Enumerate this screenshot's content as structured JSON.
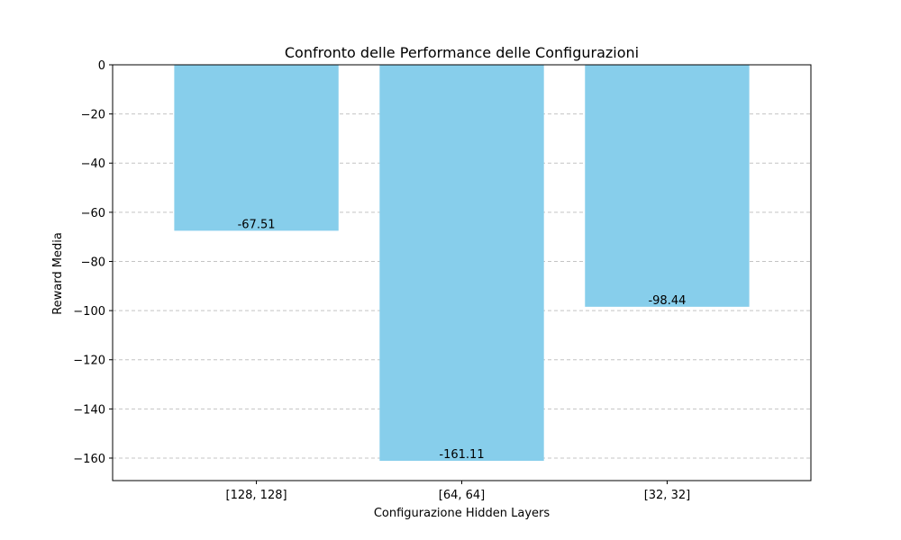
{
  "chart_data": {
    "type": "bar",
    "title": "Confronto delle Performance delle Configurazioni",
    "xlabel": "Configurazione Hidden Layers",
    "ylabel": "Reward Media",
    "categories": [
      "[128, 128]",
      "[64, 64]",
      "[32, 32]"
    ],
    "values": [
      -67.51,
      -161.11,
      -98.44
    ],
    "value_labels": [
      "-67.51",
      "-161.11",
      "-98.44"
    ],
    "ylim": [
      -169.16,
      0
    ],
    "yticks": [
      0,
      -20,
      -40,
      -60,
      -80,
      -100,
      -120,
      -140,
      -160
    ],
    "ytick_labels": [
      "0",
      "−20",
      "−40",
      "−60",
      "−80",
      "−100",
      "−120",
      "−140",
      "−160"
    ],
    "grid": "y, dashed",
    "bar_color": "#87ceeb"
  }
}
